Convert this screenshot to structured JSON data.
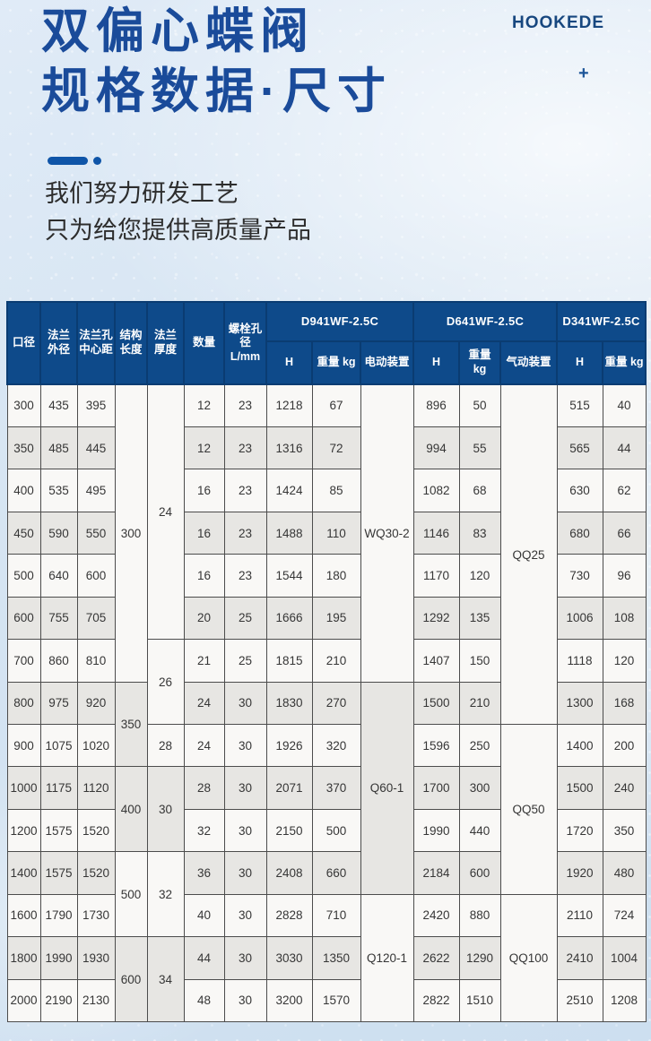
{
  "brand": "HOOKEDE",
  "plus_mark": "+",
  "hero": {
    "title": "双偏心蝶阀\n规格数据·尺寸",
    "subtitle": "我们努力研发工艺\n只为给您提供高质量产品"
  },
  "colors": {
    "title_navy": "#1a4b9a",
    "accent_dash": "#0f55a8",
    "table_header_blue": "#0e4a8a",
    "row_white": "#f9f8f6",
    "row_gray": "#e7e6e3",
    "background_blue": "#d5e4f2"
  },
  "table": {
    "headers": [
      "口径",
      "法兰外径",
      "法兰孔中心距",
      "结构长度",
      "法兰厚度",
      "数量",
      "螺栓孔径 L/mm"
    ],
    "groups": [
      {
        "model": "D941WF-2.5C",
        "cols": [
          "H",
          "重量 kg",
          "电动装置"
        ]
      },
      {
        "model": "D641WF-2.5C",
        "cols": [
          "H",
          "重量\nkg",
          "气动装置"
        ]
      },
      {
        "model": "D341WF-2.5C",
        "cols": [
          "H",
          "重量 kg"
        ]
      }
    ],
    "rows": [
      [
        "300",
        "435",
        "395",
        {
          "t": "300",
          "rs": 7,
          "bg": "w"
        },
        {
          "t": "24",
          "rs": 6,
          "bg": "w"
        },
        "12",
        "23",
        "1218",
        "67",
        {
          "t": "WQ30-2",
          "rs": 7,
          "bg": "w"
        },
        "896",
        "50",
        {
          "t": "QQ25",
          "rs": 8,
          "bg": "w"
        },
        "515",
        "40"
      ],
      [
        "350",
        "485",
        "445",
        "12",
        "23",
        "1316",
        "72",
        "994",
        "55",
        "565",
        "44"
      ],
      [
        "400",
        "535",
        "495",
        "16",
        "23",
        "1424",
        "85",
        "1082",
        "68",
        "630",
        "62"
      ],
      [
        "450",
        "590",
        "550",
        "16",
        "23",
        "1488",
        "110",
        "1146",
        "83",
        "680",
        "66"
      ],
      [
        "500",
        "640",
        "600",
        "16",
        "23",
        "1544",
        "180",
        "1170",
        "120",
        "730",
        "96"
      ],
      [
        "600",
        "755",
        "705",
        "20",
        "25",
        "1666",
        "195",
        "1292",
        "135",
        "1006",
        "108"
      ],
      [
        "700",
        "860",
        "810",
        {
          "t": "26",
          "rs": 2,
          "bg": "w"
        },
        "21",
        "25",
        "1815",
        "210",
        "1407",
        "150",
        "1118",
        "120"
      ],
      [
        "800",
        "975",
        "920",
        {
          "t": "350",
          "rs": 2,
          "bg": "g"
        },
        "24",
        "30",
        "1830",
        "270",
        {
          "t": "Q60-1",
          "rs": 5,
          "bg": "g"
        },
        "1500",
        "210",
        "1300",
        "168"
      ],
      [
        "900",
        "1075",
        "1020",
        {
          "t": "28",
          "bg": "w"
        },
        "24",
        "30",
        "1926",
        "320",
        "1596",
        "250",
        {
          "t": "QQ50",
          "rs": 4,
          "bg": "w"
        },
        "1400",
        "200"
      ],
      [
        "1000",
        "1175",
        "1120",
        {
          "t": "400",
          "rs": 2,
          "bg": "g"
        },
        {
          "t": "30",
          "rs": 2,
          "bg": "g"
        },
        "28",
        "30",
        "2071",
        "370",
        "1700",
        "300",
        "1500",
        "240"
      ],
      [
        "1200",
        "1575",
        "1520",
        "32",
        "30",
        "2150",
        "500",
        "1990",
        "440",
        "1720",
        "350"
      ],
      [
        "1400",
        "1575",
        "1520",
        {
          "t": "500",
          "rs": 2,
          "bg": "w"
        },
        {
          "t": "32",
          "rs": 2,
          "bg": "w"
        },
        "36",
        "30",
        "2408",
        "660",
        "2184",
        "600",
        "1920",
        "480"
      ],
      [
        "1600",
        "1790",
        "1730",
        "40",
        "30",
        "2828",
        "710",
        {
          "t": "Q120-1",
          "rs": 3,
          "bg": "w"
        },
        "2420",
        "880",
        {
          "t": "QQ100",
          "rs": 3,
          "bg": "w"
        },
        "2110",
        "724"
      ],
      [
        "1800",
        "1990",
        "1930",
        {
          "t": "600",
          "rs": 2,
          "bg": "g"
        },
        {
          "t": "34",
          "rs": 2,
          "bg": "g"
        },
        "44",
        "30",
        "3030",
        "1350",
        "2622",
        "1290",
        "2410",
        "1004"
      ],
      [
        "2000",
        "2190",
        "2130",
        "48",
        "30",
        "3200",
        "1570",
        "2822",
        "1510",
        "2510",
        "1208"
      ]
    ]
  }
}
